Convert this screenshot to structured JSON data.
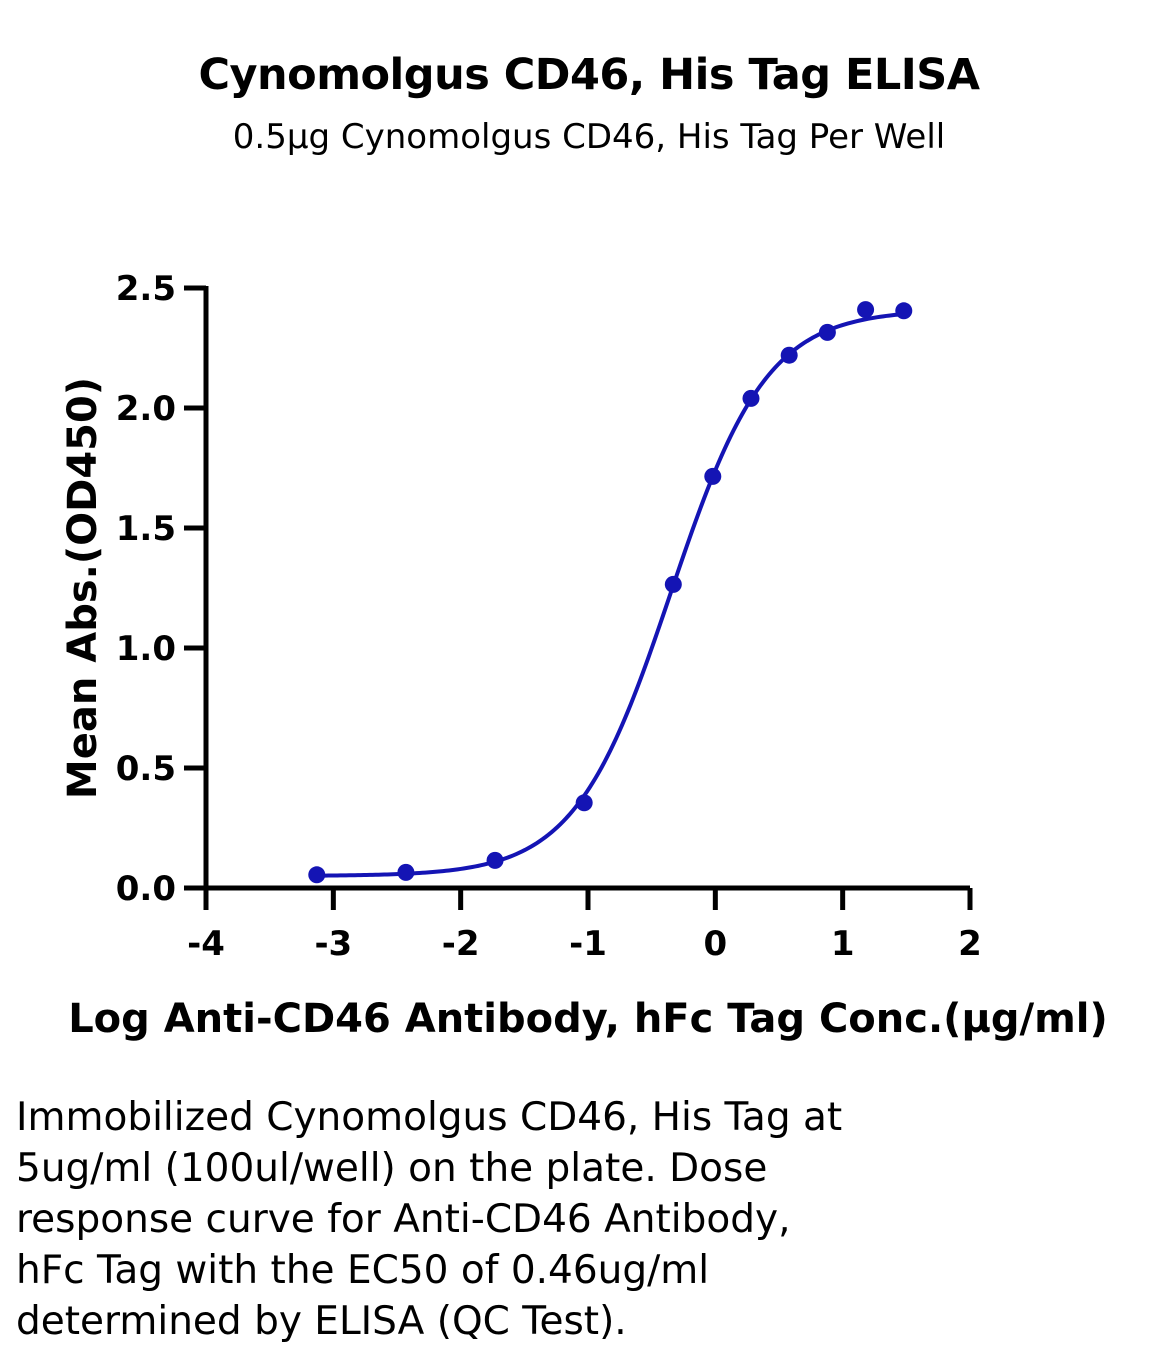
{
  "chart_data": {
    "type": "scatter",
    "title": "Cynomolgus CD46, His Tag ELISA",
    "subtitle": "0.5μg Cynomolgus CD46, His Tag Per Well",
    "xlabel": "Log Anti-CD46 Antibody, hFc Tag Conc.(μg/ml)",
    "ylabel": "Mean Abs.(OD450)",
    "xlim": [
      -4,
      2
    ],
    "ylim": [
      0,
      2.5
    ],
    "x_ticks": [
      "-4",
      "-3",
      "-2",
      "-1",
      "0",
      "1",
      "2"
    ],
    "y_ticks": [
      "0.0",
      "0.5",
      "1.0",
      "1.5",
      "2.0",
      "2.5"
    ],
    "grid": false,
    "series": [
      {
        "color": "#1414b4",
        "x": [
          -3.13,
          -2.43,
          -1.73,
          -1.03,
          -0.33,
          -0.02,
          0.28,
          0.58,
          0.88,
          1.18,
          1.48
        ],
        "y": [
          0.055,
          0.065,
          0.115,
          0.355,
          1.265,
          1.715,
          2.04,
          2.22,
          2.315,
          2.41,
          2.405
        ]
      }
    ],
    "fit_curve": {
      "model": "4PL",
      "bottom": 0.05,
      "top": 2.41,
      "log_ec50": -0.35,
      "hill": 1.15,
      "x_range": [
        -3.13,
        1.48
      ]
    }
  },
  "caption": [
    "Immobilized Cynomolgus CD46, His Tag at",
    "5ug/ml (100ul/well) on the plate. Dose",
    "response curve for Anti-CD46 Antibody,",
    "hFc Tag with the EC50 of 0.46ug/ml",
    "determined by ELISA (QC Test)."
  ]
}
